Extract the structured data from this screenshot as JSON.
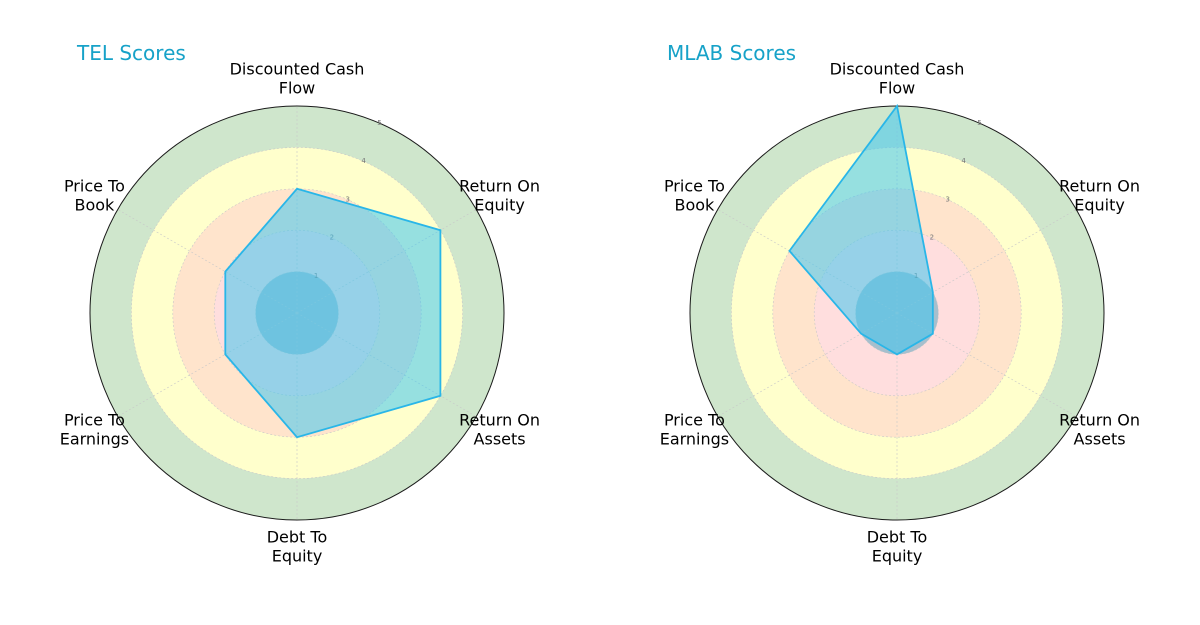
{
  "colors": {
    "title": "#17a2c8",
    "series_fill": "#3fc6f0",
    "series_stroke": "#29b6e8",
    "outer_ring": "#cfe6cc",
    "ring_4": "#ffffcc",
    "ring_3": "#ffe4cc",
    "ring_2": "#ffdede",
    "center": "#a6bfcd",
    "border": "#1a1a1a"
  },
  "chart_data": [
    {
      "type": "radar",
      "title": "TEL Scores",
      "categories": [
        "Discounted Cash\nFlow",
        "Return On\nEquity",
        "Return On\nAssets",
        "Debt To\nEquity",
        "Price To\nEarnings",
        "Price To\nBook"
      ],
      "rlim": [
        0,
        5
      ],
      "ticks": [
        "1",
        "2",
        "3",
        "4",
        "5"
      ],
      "grid": true,
      "series": [
        {
          "values": [
            3,
            4,
            4,
            3,
            2,
            2
          ]
        }
      ]
    },
    {
      "type": "radar",
      "title": "MLAB Scores",
      "categories": [
        "Discounted Cash\nFlow",
        "Return On\nEquity",
        "Return On\nAssets",
        "Debt To\nEquity",
        "Price To\nEarnings",
        "Price To\nBook"
      ],
      "rlim": [
        0,
        5
      ],
      "ticks": [
        "1",
        "2",
        "3",
        "4",
        "5"
      ],
      "grid": true,
      "series": [
        {
          "values": [
            5,
            1,
            1,
            1,
            1,
            3
          ]
        }
      ]
    }
  ]
}
